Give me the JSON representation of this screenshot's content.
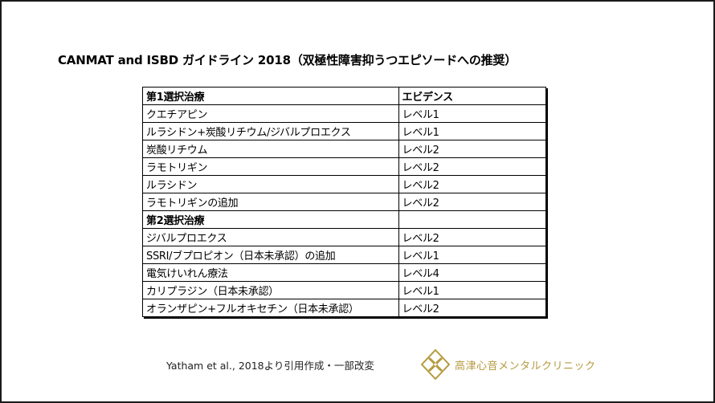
{
  "slide": {
    "title": "CANMAT and ISBD ガイドライン 2018（双極性障害抑うつエピソードへの推奨）"
  },
  "table": {
    "rows": [
      {
        "treatment": "第1選択治療",
        "evidence": "エビデンス",
        "header": true
      },
      {
        "treatment": "クエチアピン",
        "evidence": "レベル1"
      },
      {
        "treatment": "ルラシドン+炭酸リチウム/ジバルプロエクス",
        "evidence": "レベル1"
      },
      {
        "treatment": "炭酸リチウム",
        "evidence": "レベル2"
      },
      {
        "treatment": "ラモトリギン",
        "evidence": "レベル2"
      },
      {
        "treatment": "ルラシドン",
        "evidence": "レベル2"
      },
      {
        "treatment": "ラモトリギンの追加",
        "evidence": "レベル2"
      },
      {
        "treatment": "第2選択治療",
        "evidence": "",
        "header": true
      },
      {
        "treatment": "ジバルプロエクス",
        "evidence": "レベル2"
      },
      {
        "treatment": "SSRI/ブプロピオン（日本未承認）の追加",
        "evidence": "レベル1"
      },
      {
        "treatment": "電気けいれん療法",
        "evidence": "レベル4"
      },
      {
        "treatment": "カリプラジン（日本未承認）",
        "evidence": "レベル1"
      },
      {
        "treatment": "オランザピン+フルオキセチン（日本未承認）",
        "evidence": "レベル2"
      }
    ]
  },
  "footer": {
    "citation": "Yatham et al., 2018より引用作成・一部改変",
    "clinic_name": "高津心音メンタルクリニック",
    "clinic_logo_icon": "clinic-logo-icon",
    "brand_color": "#b59a3f"
  }
}
